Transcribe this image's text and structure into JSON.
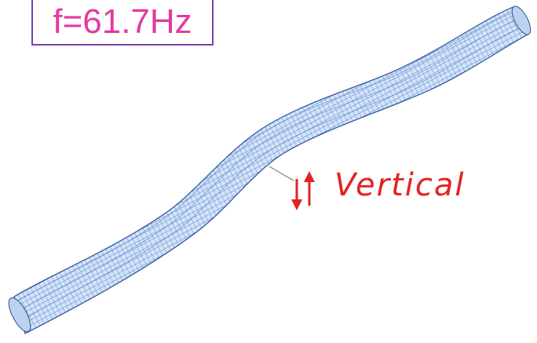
{
  "annotation": {
    "frequency_label": "f=61.7Hz",
    "mode_label": "Vertical",
    "label_color": "#e32222",
    "frequency_color": "#e23aa0",
    "box_border_color": "#7a3fb0"
  },
  "mesh": {
    "fill_color": "#c8dcf4",
    "line_color": "#3f74c8",
    "edge_color": "#2a4f96"
  },
  "icons": {
    "direction_arrow": "up-down-arrow-icon"
  }
}
